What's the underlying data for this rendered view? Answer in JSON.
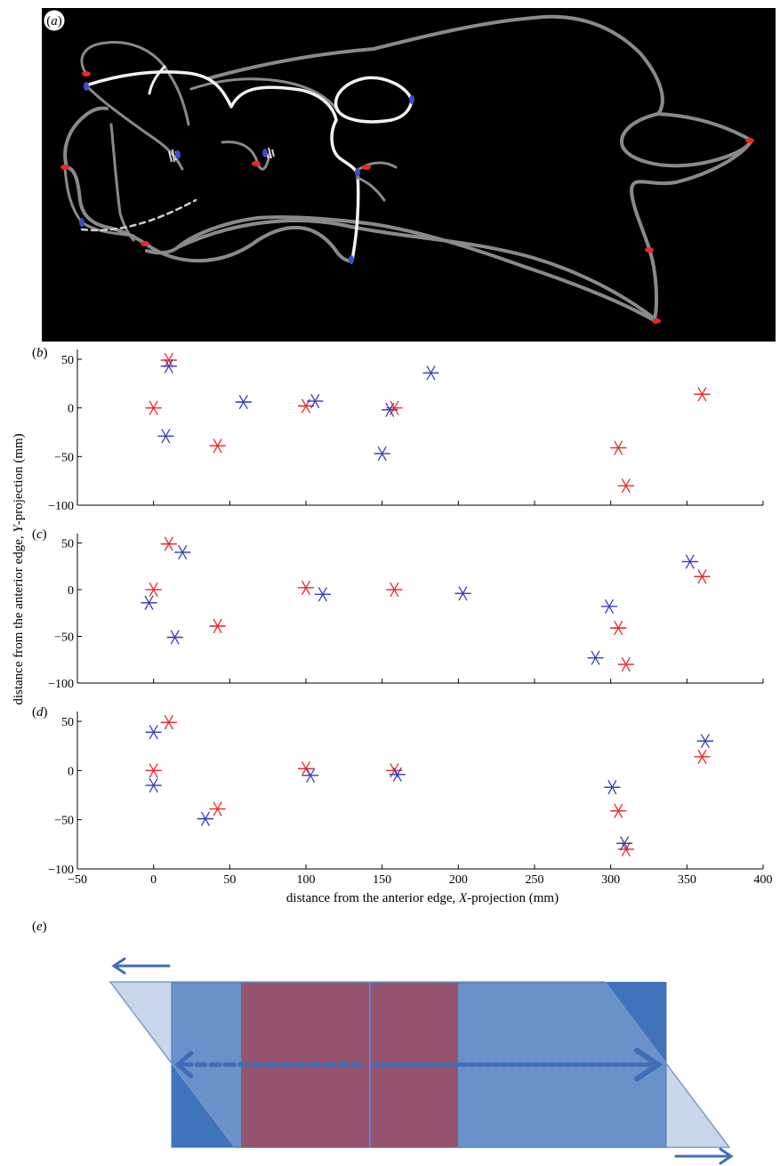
{
  "panels": {
    "a": "a",
    "b": "b",
    "c": "c",
    "d": "d",
    "e": "e"
  },
  "colors": {
    "red": "#e8282c",
    "blue": "#3a3fb8",
    "vessel": "#8a8a8a",
    "vessel_bright": "#f2f2f2",
    "image_bg": "#000000",
    "band_light": "#c9d6ea",
    "band_mid": "#5f8cc6",
    "band_dark": "#3f74bb",
    "band_core": "#97546e",
    "arrow": "#3e6fb6"
  },
  "chart_data": [
    {
      "type": "scatter",
      "panel": "b",
      "xlim": [
        -50,
        400
      ],
      "ylim": [
        -100,
        60
      ],
      "yticks": [
        -100,
        -50,
        0,
        50
      ],
      "series": [
        {
          "color": "red",
          "marker": "asterisk",
          "x": [
            0,
            10,
            42,
            100,
            158,
            305,
            310,
            360
          ],
          "y": [
            0,
            49,
            -39,
            2,
            0,
            -41,
            -80,
            14
          ]
        },
        {
          "color": "blue",
          "marker": "asterisk",
          "x": [
            10,
            8,
            59,
            106,
            155,
            182,
            150
          ],
          "y": [
            43,
            -29,
            6,
            7,
            -2,
            36,
            -47
          ]
        }
      ]
    },
    {
      "type": "scatter",
      "panel": "c",
      "xlim": [
        -50,
        400
      ],
      "ylim": [
        -100,
        60
      ],
      "yticks": [
        -100,
        -50,
        0,
        50
      ],
      "series": [
        {
          "color": "red",
          "marker": "asterisk",
          "x": [
            0,
            10,
            42,
            100,
            158,
            305,
            310,
            360
          ],
          "y": [
            0,
            49,
            -39,
            2,
            0,
            -41,
            -80,
            14
          ]
        },
        {
          "color": "blue",
          "marker": "asterisk",
          "x": [
            19,
            -3,
            14,
            111,
            203,
            299,
            290,
            352
          ],
          "y": [
            40,
            -14,
            -51,
            -5,
            -4,
            -18,
            -73,
            30
          ]
        }
      ]
    },
    {
      "type": "scatter",
      "panel": "d",
      "xlim": [
        -50,
        400
      ],
      "ylim": [
        -100,
        60
      ],
      "xticks": [
        -50,
        0,
        50,
        100,
        150,
        200,
        250,
        300,
        350,
        400
      ],
      "yticks": [
        -100,
        -50,
        0,
        50
      ],
      "xlabel_text": "distance from the anterior edge, ",
      "xlabel_ital": "X",
      "xlabel_end": "-projection (mm)",
      "series": [
        {
          "color": "red",
          "marker": "asterisk",
          "x": [
            0,
            10,
            42,
            100,
            158,
            305,
            310,
            360
          ],
          "y": [
            0,
            49,
            -39,
            2,
            0,
            -41,
            -80,
            14
          ]
        },
        {
          "color": "blue",
          "marker": "asterisk",
          "x": [
            0,
            0,
            34,
            103,
            160,
            301,
            309,
            362
          ],
          "y": [
            39,
            -15,
            -49,
            -5,
            -4,
            -17,
            -74,
            30
          ]
        }
      ]
    }
  ],
  "shared_ylabel_text": "distance from the anterior edge, ",
  "shared_ylabel_ital": "Y",
  "shared_ylabel_end": "-projection (mm)"
}
